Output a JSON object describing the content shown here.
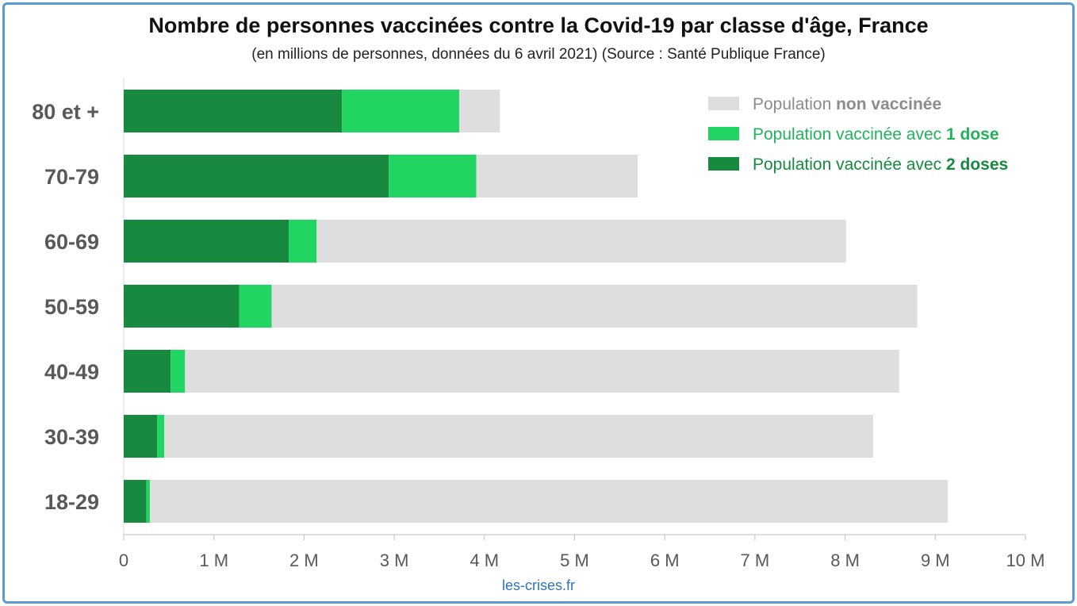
{
  "title": "Nombre de personnes vaccinées contre la Covid-19 par classe d'âge, France",
  "subtitle": "(en millions de personnes, données du 6 avril 2021) (Source : Santé Publique France)",
  "credit": "les-crises.fr",
  "colors": {
    "non_vaccinated": "#dedede",
    "one_dose": "#22d563",
    "two_doses": "#178a3f",
    "frame": "#5b9bd5",
    "credit": "#2e75b6"
  },
  "legend": [
    {
      "key": "non_vaccinated",
      "text_plain": "Population ",
      "text_bold": "non vaccinée",
      "text_color": "#8c8c8c"
    },
    {
      "key": "one_dose",
      "text_plain": "Population vaccinée avec ",
      "text_bold": "1 dose",
      "text_color": "#22b35a"
    },
    {
      "key": "two_doses",
      "text_plain": "Population vaccinée avec ",
      "text_bold": "2 doses",
      "text_color": "#178a3f"
    }
  ],
  "chart_data": {
    "type": "bar",
    "orientation": "horizontal",
    "stacked": true,
    "categories": [
      "80 et +",
      "70-79",
      "60-69",
      "50-59",
      "40-49",
      "30-39",
      "18-29"
    ],
    "series": [
      {
        "name": "Population vaccinée avec 2 doses",
        "key": "two_doses",
        "values": [
          2.42,
          2.94,
          1.83,
          1.28,
          0.52,
          0.37,
          0.25
        ]
      },
      {
        "name": "Population vaccinée avec 1 dose",
        "key": "one_dose",
        "values": [
          1.3,
          0.97,
          0.31,
          0.36,
          0.16,
          0.08,
          0.04
        ]
      },
      {
        "name": "Population non vaccinée",
        "key": "non_vaccinated",
        "values": [
          0.45,
          1.79,
          5.87,
          7.16,
          7.92,
          7.86,
          8.85
        ]
      }
    ],
    "totals": [
      4.17,
      5.7,
      8.01,
      8.8,
      8.6,
      8.31,
      9.14
    ],
    "xlim": [
      0,
      10
    ],
    "xticks": [
      {
        "value": 0,
        "label": "0"
      },
      {
        "value": 1,
        "label": "1 M"
      },
      {
        "value": 2,
        "label": "2 M"
      },
      {
        "value": 3,
        "label": "3 M"
      },
      {
        "value": 4,
        "label": "4 M"
      },
      {
        "value": 5,
        "label": "5 M"
      },
      {
        "value": 6,
        "label": "6 M"
      },
      {
        "value": 7,
        "label": "7 M"
      },
      {
        "value": 8,
        "label": "8 M"
      },
      {
        "value": 9,
        "label": "9 M"
      },
      {
        "value": 10,
        "label": "10 M"
      }
    ],
    "grid": false,
    "legend_position": "top-right"
  }
}
